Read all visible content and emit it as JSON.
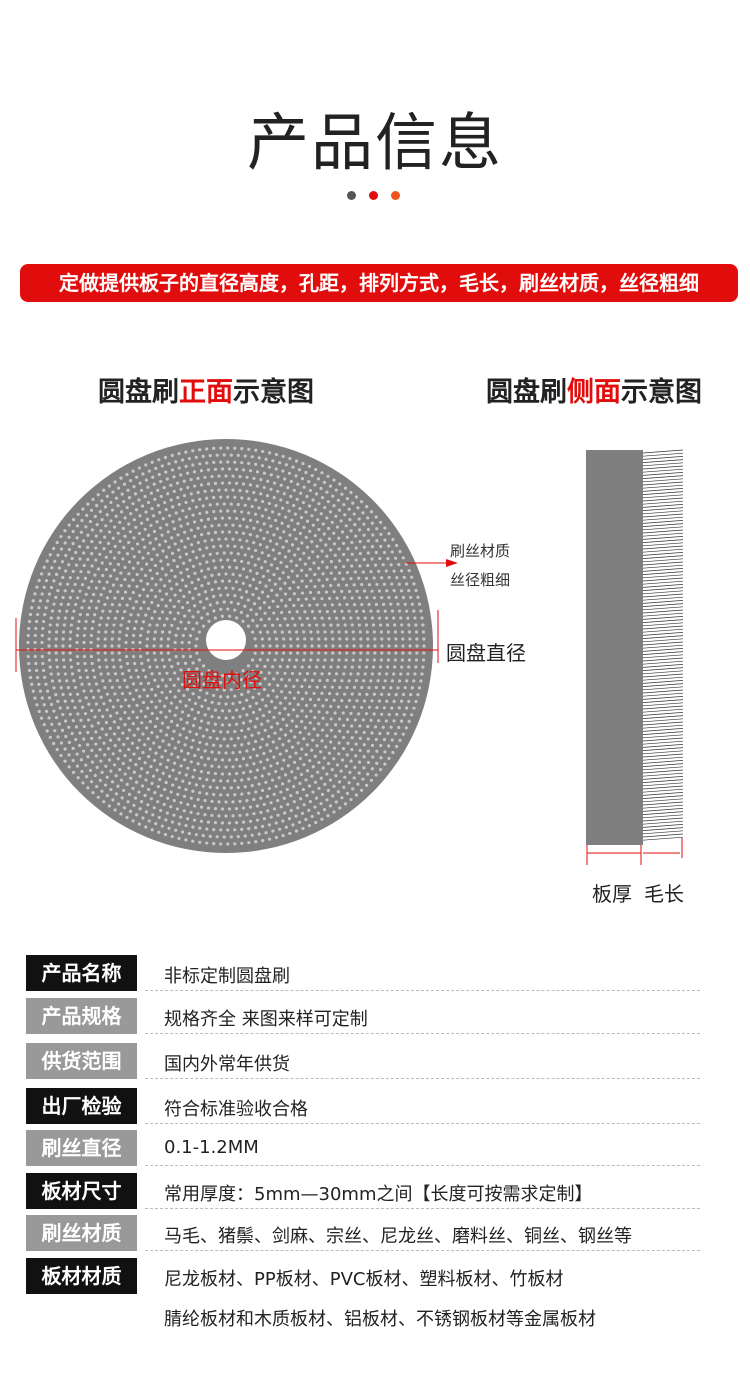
{
  "title": "产品信息",
  "colors": {
    "accent": "#e10d0d",
    "dot1": "#555555",
    "dot2": "#e10d0d",
    "dot3": "#f0541e",
    "disc": "#7f7f7f"
  },
  "banner": "定做提供板子的直径高度，孔距，排列方式，毛长，刷丝材质，丝径粗细",
  "front": {
    "pre": "圆盘刷",
    "hl": "正面",
    "post": "示意图",
    "callout1": "刷丝材质",
    "callout2": "丝径粗细",
    "diameter": "圆盘直径",
    "inner": "圆盘内径"
  },
  "side": {
    "pre": "圆盘刷",
    "hl": "侧面",
    "post": "示意图",
    "thickness": "板厚",
    "bristle": "毛长"
  },
  "specs": [
    {
      "label": "产品名称",
      "value": "非标定制圆盘刷",
      "style": "dark"
    },
    {
      "label": "产品规格",
      "value": "规格齐全 来图来样可定制",
      "style": "gray"
    },
    {
      "label": "供货范围",
      "value": "国内外常年供货",
      "style": "gray"
    },
    {
      "label": "出厂检验",
      "value": "符合标准验收合格",
      "style": "dark"
    },
    {
      "label": "刷丝直径",
      "value": "0.1-1.2MM",
      "style": "gray"
    },
    {
      "label": "板材尺寸",
      "value": "常用厚度：5mm—30mm之间【长度可按需求定制】",
      "style": "dark"
    },
    {
      "label": "刷丝材质",
      "value": "马毛、猪鬃、剑麻、宗丝、尼龙丝、磨料丝、铜丝、钢丝等",
      "style": "gray"
    },
    {
      "label": "板材材质",
      "value": "尼龙板材、PP板材、PVC板材、塑料板材、竹板材",
      "style": "dark"
    }
  ],
  "specs_extra": "腈纶板材和木质板材、铝板材、不锈钢板材等金属板材"
}
